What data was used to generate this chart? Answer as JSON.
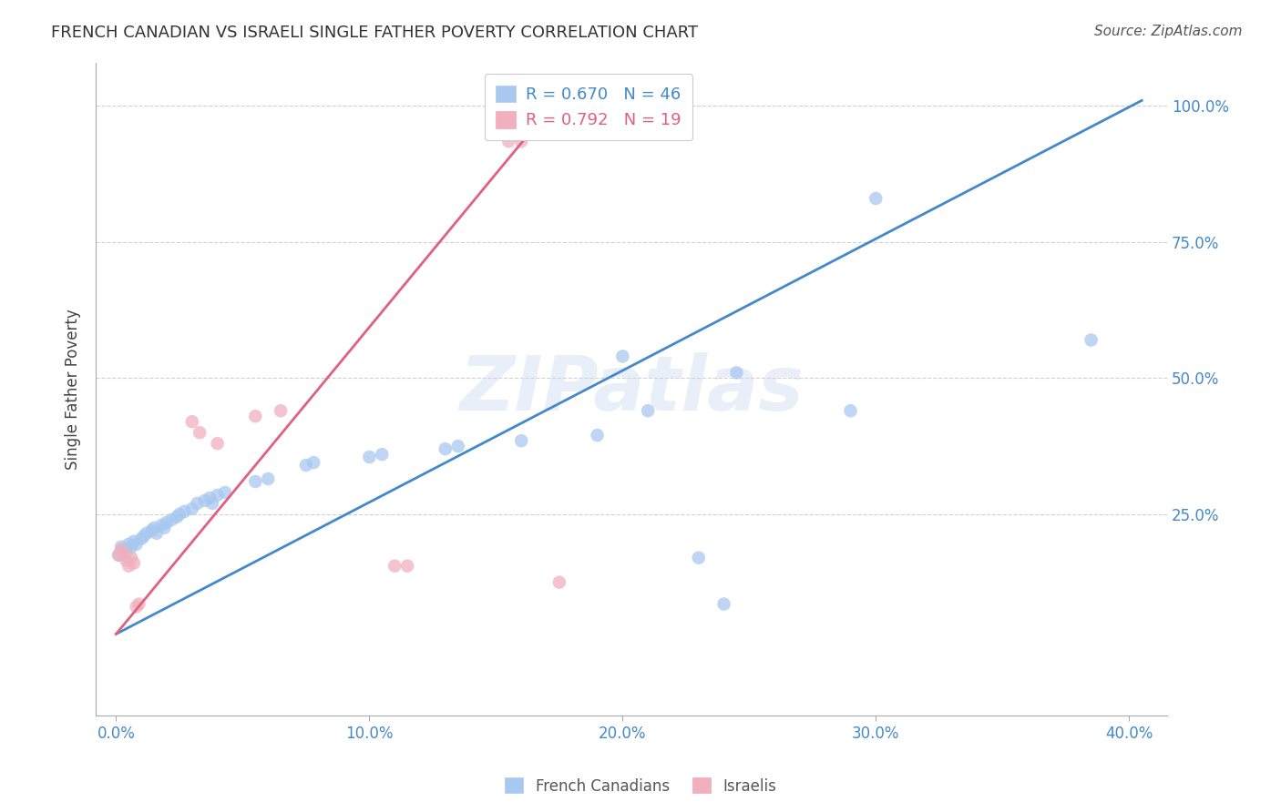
{
  "title": "FRENCH CANADIAN VS ISRAELI SINGLE FATHER POVERTY CORRELATION CHART",
  "source": "Source: ZipAtlas.com",
  "ylabel_label": "Single Father Poverty",
  "x_tick_labels": [
    "0.0%",
    "10.0%",
    "20.0%",
    "30.0%",
    "40.0%"
  ],
  "x_tick_values": [
    0.0,
    0.1,
    0.2,
    0.3,
    0.4
  ],
  "y_tick_labels": [
    "25.0%",
    "50.0%",
    "75.0%",
    "100.0%"
  ],
  "y_tick_values": [
    0.25,
    0.5,
    0.75,
    1.0
  ],
  "xlim": [
    -0.008,
    0.415
  ],
  "ylim": [
    -0.12,
    1.08
  ],
  "legend_french": "R = 0.670   N = 46",
  "legend_israeli": "R = 0.792   N = 19",
  "french_color": "#a8c8f0",
  "israeli_color": "#f0b0c0",
  "french_line_color": "#4488cc",
  "israeli_line_color": "#e06080",
  "french_canadians": [
    [
      0.001,
      0.175
    ],
    [
      0.002,
      0.19
    ],
    [
      0.003,
      0.185
    ],
    [
      0.004,
      0.18
    ],
    [
      0.005,
      0.195
    ],
    [
      0.006,
      0.19
    ],
    [
      0.007,
      0.2
    ],
    [
      0.008,
      0.195
    ],
    [
      0.01,
      0.205
    ],
    [
      0.011,
      0.21
    ],
    [
      0.012,
      0.215
    ],
    [
      0.014,
      0.22
    ],
    [
      0.015,
      0.225
    ],
    [
      0.016,
      0.215
    ],
    [
      0.018,
      0.23
    ],
    [
      0.019,
      0.225
    ],
    [
      0.02,
      0.235
    ],
    [
      0.022,
      0.24
    ],
    [
      0.024,
      0.245
    ],
    [
      0.025,
      0.25
    ],
    [
      0.027,
      0.255
    ],
    [
      0.03,
      0.26
    ],
    [
      0.032,
      0.27
    ],
    [
      0.035,
      0.275
    ],
    [
      0.037,
      0.28
    ],
    [
      0.038,
      0.27
    ],
    [
      0.04,
      0.285
    ],
    [
      0.043,
      0.29
    ],
    [
      0.055,
      0.31
    ],
    [
      0.06,
      0.315
    ],
    [
      0.075,
      0.34
    ],
    [
      0.078,
      0.345
    ],
    [
      0.1,
      0.355
    ],
    [
      0.105,
      0.36
    ],
    [
      0.13,
      0.37
    ],
    [
      0.135,
      0.375
    ],
    [
      0.16,
      0.385
    ],
    [
      0.19,
      0.395
    ],
    [
      0.2,
      0.54
    ],
    [
      0.21,
      0.44
    ],
    [
      0.23,
      0.17
    ],
    [
      0.24,
      0.085
    ],
    [
      0.245,
      0.51
    ],
    [
      0.29,
      0.44
    ],
    [
      0.3,
      0.83
    ],
    [
      0.385,
      0.57
    ]
  ],
  "israelis": [
    [
      0.001,
      0.175
    ],
    [
      0.002,
      0.185
    ],
    [
      0.003,
      0.175
    ],
    [
      0.004,
      0.165
    ],
    [
      0.005,
      0.155
    ],
    [
      0.006,
      0.17
    ],
    [
      0.007,
      0.16
    ],
    [
      0.008,
      0.08
    ],
    [
      0.009,
      0.085
    ],
    [
      0.03,
      0.42
    ],
    [
      0.033,
      0.4
    ],
    [
      0.04,
      0.38
    ],
    [
      0.055,
      0.43
    ],
    [
      0.065,
      0.44
    ],
    [
      0.11,
      0.155
    ],
    [
      0.115,
      0.155
    ],
    [
      0.155,
      0.935
    ],
    [
      0.16,
      0.935
    ],
    [
      0.175,
      0.125
    ]
  ],
  "french_line_pts": [
    [
      0.0,
      0.03
    ],
    [
      0.405,
      1.01
    ]
  ],
  "israeli_line_pts": [
    [
      0.0,
      0.03
    ],
    [
      0.165,
      0.96
    ]
  ]
}
